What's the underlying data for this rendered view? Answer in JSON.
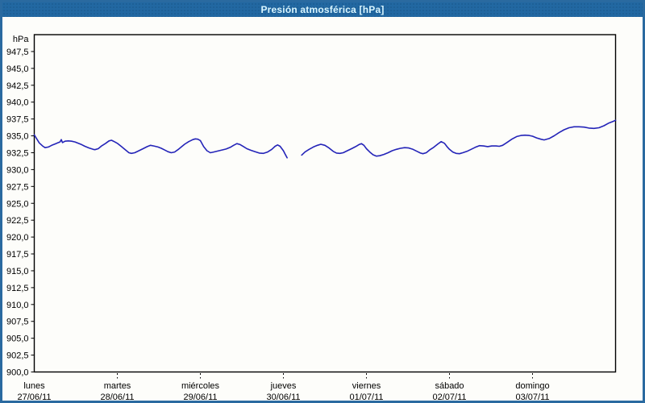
{
  "window": {
    "title": "Presión atmosférica [hPa]"
  },
  "colors": {
    "frame_blue": "#2a6aa0",
    "titlebar_blue": "#2268a2",
    "title_text": "#d9f6ff",
    "line_blue": "#2424b8",
    "grid_black": "#000000",
    "plot_bg": "#fdfdfa"
  },
  "chart_data": {
    "type": "line",
    "title": "Presión atmosférica [hPa]",
    "unit_label": "hPa",
    "ylabel": "hPa",
    "xlabel": "",
    "ylim": [
      900,
      950
    ],
    "ytick_step": 2.5,
    "decimal_separator": ",",
    "grid": true,
    "legend": "none",
    "y_ticks": [
      947.5,
      945.0,
      942.5,
      940.0,
      937.5,
      935.0,
      932.5,
      930.0,
      927.5,
      925.0,
      922.5,
      920.0,
      917.5,
      915.0,
      912.5,
      910.0,
      907.5,
      905.0,
      902.5,
      900.0
    ],
    "x_categories": [
      {
        "day": "lunes",
        "date": "27/06/11"
      },
      {
        "day": "martes",
        "date": "28/06/11"
      },
      {
        "day": "miércoles",
        "date": "29/06/11"
      },
      {
        "day": "jueves",
        "date": "30/06/11"
      },
      {
        "day": "viernes",
        "date": "01/07/11"
      },
      {
        "day": "sábado",
        "date": "02/07/11"
      },
      {
        "day": "domingo",
        "date": "03/07/11"
      }
    ],
    "series": [
      {
        "name": "Presión atmosférica",
        "color": "#2424b8",
        "note": "x = days since start of lunes 27/06/11; gap in data early jueves",
        "segments": [
          [
            [
              0.0,
              935.15
            ],
            [
              0.03,
              934.55
            ],
            [
              0.06,
              933.95
            ],
            [
              0.1,
              933.5
            ],
            [
              0.13,
              933.25
            ],
            [
              0.17,
              933.35
            ],
            [
              0.21,
              933.6
            ],
            [
              0.25,
              933.8
            ],
            [
              0.29,
              934.0
            ],
            [
              0.31,
              934.1
            ],
            [
              0.325,
              934.45
            ],
            [
              0.34,
              934.0
            ],
            [
              0.37,
              934.2
            ],
            [
              0.41,
              934.25
            ],
            [
              0.45,
              934.2
            ],
            [
              0.49,
              934.1
            ],
            [
              0.53,
              933.9
            ],
            [
              0.57,
              933.7
            ],
            [
              0.61,
              933.45
            ],
            [
              0.66,
              933.2
            ],
            [
              0.71,
              933.0
            ],
            [
              0.73,
              932.95
            ],
            [
              0.77,
              933.1
            ],
            [
              0.81,
              933.5
            ],
            [
              0.86,
              933.9
            ],
            [
              0.9,
              934.25
            ],
            [
              0.93,
              934.35
            ],
            [
              0.97,
              934.1
            ],
            [
              1.0,
              933.9
            ],
            [
              1.05,
              933.4
            ],
            [
              1.1,
              932.9
            ],
            [
              1.14,
              932.5
            ],
            [
              1.17,
              932.4
            ],
            [
              1.21,
              932.5
            ],
            [
              1.26,
              932.8
            ],
            [
              1.31,
              933.1
            ],
            [
              1.36,
              933.4
            ],
            [
              1.4,
              933.6
            ],
            [
              1.44,
              933.5
            ],
            [
              1.49,
              933.35
            ],
            [
              1.53,
              933.15
            ],
            [
              1.57,
              932.9
            ],
            [
              1.61,
              932.65
            ],
            [
              1.65,
              932.5
            ],
            [
              1.69,
              932.6
            ],
            [
              1.73,
              932.95
            ],
            [
              1.77,
              933.35
            ],
            [
              1.81,
              933.75
            ],
            [
              1.86,
              934.15
            ],
            [
              1.91,
              934.45
            ],
            [
              1.94,
              934.55
            ],
            [
              1.97,
              934.5
            ],
            [
              2.0,
              934.3
            ],
            [
              2.04,
              933.4
            ],
            [
              2.08,
              932.8
            ],
            [
              2.12,
              932.5
            ],
            [
              2.16,
              932.6
            ],
            [
              2.21,
              932.75
            ],
            [
              2.26,
              932.9
            ],
            [
              2.31,
              933.05
            ],
            [
              2.36,
              933.3
            ],
            [
              2.4,
              933.6
            ],
            [
              2.44,
              933.85
            ],
            [
              2.48,
              933.7
            ],
            [
              2.52,
              933.4
            ],
            [
              2.56,
              933.1
            ],
            [
              2.61,
              932.85
            ],
            [
              2.66,
              932.65
            ],
            [
              2.71,
              932.45
            ],
            [
              2.76,
              932.4
            ],
            [
              2.81,
              932.6
            ],
            [
              2.86,
              933.0
            ],
            [
              2.9,
              933.45
            ],
            [
              2.93,
              933.65
            ],
            [
              2.96,
              933.45
            ],
            [
              3.0,
              932.8
            ],
            [
              3.02,
              932.3
            ],
            [
              3.045,
              931.75
            ]
          ],
          [
            [
              3.22,
              932.15
            ],
            [
              3.26,
              932.6
            ],
            [
              3.31,
              933.0
            ],
            [
              3.36,
              933.35
            ],
            [
              3.41,
              933.6
            ],
            [
              3.45,
              933.75
            ],
            [
              3.5,
              933.6
            ],
            [
              3.55,
              933.2
            ],
            [
              3.6,
              932.7
            ],
            [
              3.64,
              932.45
            ],
            [
              3.68,
              932.4
            ],
            [
              3.72,
              932.5
            ],
            [
              3.77,
              932.8
            ],
            [
              3.82,
              933.1
            ],
            [
              3.87,
              933.4
            ],
            [
              3.91,
              933.7
            ],
            [
              3.94,
              933.85
            ],
            [
              3.97,
              933.6
            ],
            [
              4.0,
              933.1
            ],
            [
              4.04,
              932.6
            ],
            [
              4.08,
              932.2
            ],
            [
              4.12,
              932.0
            ],
            [
              4.16,
              932.05
            ],
            [
              4.21,
              932.25
            ],
            [
              4.26,
              932.5
            ],
            [
              4.31,
              932.8
            ],
            [
              4.36,
              933.0
            ],
            [
              4.41,
              933.15
            ],
            [
              4.46,
              933.25
            ],
            [
              4.51,
              933.2
            ],
            [
              4.56,
              933.0
            ],
            [
              4.61,
              932.7
            ],
            [
              4.65,
              932.45
            ],
            [
              4.68,
              932.35
            ],
            [
              4.72,
              932.5
            ],
            [
              4.76,
              932.9
            ],
            [
              4.81,
              933.3
            ],
            [
              4.86,
              933.8
            ],
            [
              4.9,
              934.15
            ],
            [
              4.94,
              933.9
            ],
            [
              4.97,
              933.4
            ],
            [
              5.0,
              933.0
            ],
            [
              5.04,
              932.6
            ],
            [
              5.08,
              932.4
            ],
            [
              5.12,
              932.35
            ],
            [
              5.16,
              932.5
            ],
            [
              5.21,
              932.7
            ],
            [
              5.26,
              933.0
            ],
            [
              5.31,
              933.3
            ],
            [
              5.36,
              933.55
            ],
            [
              5.41,
              933.5
            ],
            [
              5.46,
              933.4
            ],
            [
              5.51,
              933.5
            ],
            [
              5.56,
              933.5
            ],
            [
              5.6,
              933.45
            ],
            [
              5.64,
              933.6
            ],
            [
              5.69,
              934.0
            ],
            [
              5.75,
              934.5
            ],
            [
              5.81,
              934.9
            ],
            [
              5.86,
              935.05
            ],
            [
              5.91,
              935.1
            ],
            [
              5.96,
              935.05
            ],
            [
              6.0,
              934.95
            ],
            [
              6.05,
              934.7
            ],
            [
              6.1,
              934.5
            ],
            [
              6.14,
              934.4
            ],
            [
              6.2,
              934.6
            ],
            [
              6.26,
              935.0
            ],
            [
              6.32,
              935.5
            ],
            [
              6.38,
              935.9
            ],
            [
              6.44,
              936.2
            ],
            [
              6.5,
              936.35
            ],
            [
              6.56,
              936.35
            ],
            [
              6.62,
              936.3
            ],
            [
              6.68,
              936.15
            ],
            [
              6.74,
              936.1
            ],
            [
              6.8,
              936.2
            ],
            [
              6.86,
              936.5
            ],
            [
              6.92,
              936.9
            ],
            [
              6.97,
              937.15
            ],
            [
              7.0,
              937.3
            ]
          ]
        ]
      }
    ]
  }
}
